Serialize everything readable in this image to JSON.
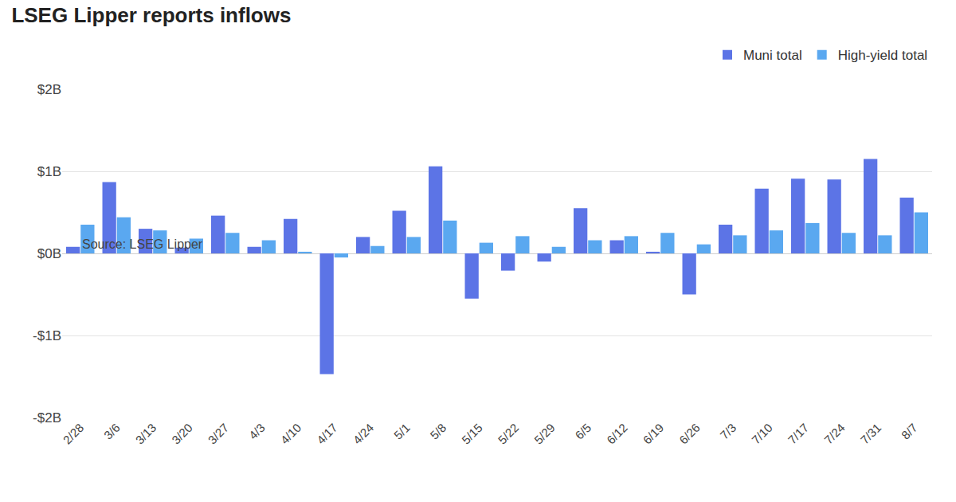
{
  "chart_data": {
    "type": "bar",
    "title": "LSEG Lipper reports inflows",
    "source": "Source: LSEG Lipper",
    "categories": [
      "2/28",
      "3/6",
      "3/13",
      "3/20",
      "3/27",
      "4/3",
      "4/10",
      "4/17",
      "4/24",
      "5/1",
      "5/8",
      "5/15",
      "5/22",
      "5/29",
      "6/5",
      "6/12",
      "6/19",
      "6/26",
      "7/3",
      "7/10",
      "7/17",
      "7/24",
      "7/31",
      "8/7"
    ],
    "series": [
      {
        "name": "Muni total",
        "color": "#5c74e6",
        "values": [
          0.08,
          0.87,
          0.3,
          0.07,
          0.46,
          0.08,
          0.42,
          -1.47,
          0.2,
          0.52,
          1.06,
          -0.55,
          -0.21,
          -0.1,
          0.55,
          0.16,
          0.02,
          -0.5,
          0.35,
          0.79,
          0.91,
          0.9,
          1.15,
          0.68
        ]
      },
      {
        "name": "High-yield total",
        "color": "#5aa8f0",
        "values": [
          0.35,
          0.44,
          0.28,
          0.18,
          0.25,
          0.16,
          0.02,
          -0.05,
          0.09,
          0.2,
          0.4,
          0.13,
          0.21,
          0.08,
          0.16,
          0.21,
          0.25,
          0.11,
          0.22,
          0.28,
          0.37,
          0.25,
          0.22,
          0.5
        ]
      }
    ],
    "ylim": [
      -2,
      2
    ],
    "yticks": [
      {
        "value": -2,
        "label": "-$2B"
      },
      {
        "value": -1,
        "label": "-$1B"
      },
      {
        "value": 0,
        "label": "$0B"
      },
      {
        "value": 1,
        "label": "$1B"
      },
      {
        "value": 2,
        "label": "$2B"
      }
    ],
    "grid": true,
    "legend": "top right"
  }
}
